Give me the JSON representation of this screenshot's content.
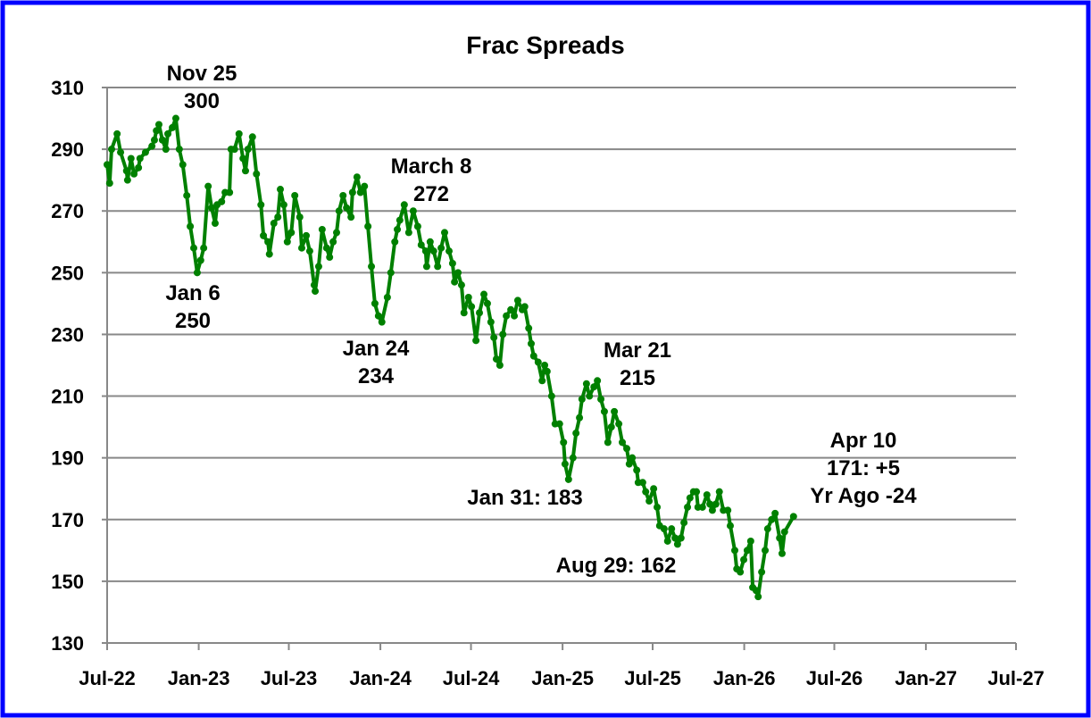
{
  "chart_data": {
    "type": "line",
    "title": "Frac Spreads",
    "xlabel": "",
    "ylabel": "",
    "xlim": [
      "2022-07-01",
      "2027-07-01"
    ],
    "ylim": [
      130,
      310
    ],
    "grid": "horizontal",
    "legend": "none",
    "colors": {
      "line": "#008000",
      "frame": "#0000ff",
      "grid": "#888888"
    },
    "x_tick_labels": [
      "Jul-22",
      "Jan-23",
      "Jul-23",
      "Jan-24",
      "Jul-24",
      "Jan-25",
      "Jul-25",
      "Jan-26",
      "Jul-26",
      "Jan-27",
      "Jul-27"
    ],
    "x_tick_dates": [
      "2022-07-01",
      "2023-01-01",
      "2023-07-01",
      "2024-01-01",
      "2024-07-01",
      "2025-01-01",
      "2025-07-01",
      "2026-01-01",
      "2026-07-01",
      "2027-01-01",
      "2027-07-01"
    ],
    "y_tick_labels": [
      "310",
      "290",
      "270",
      "250",
      "230",
      "210",
      "190",
      "170",
      "150",
      "130"
    ],
    "y_ticks": [
      310,
      290,
      270,
      250,
      230,
      210,
      190,
      170,
      150,
      130
    ],
    "annotations": [
      {
        "lines": [
          "Nov 25",
          "300"
        ]
      },
      {
        "lines": [
          "Jan 6",
          "250"
        ]
      },
      {
        "lines": [
          "March 8",
          "272"
        ]
      },
      {
        "lines": [
          "Jan 24",
          "234"
        ]
      },
      {
        "lines": [
          "Mar 21",
          "215"
        ]
      },
      {
        "lines": [
          "Jan 31: 183"
        ]
      },
      {
        "lines": [
          "Aug 29: 162"
        ]
      },
      {
        "lines": [
          "Apr 10",
          "171: +5",
          "Yr Ago -24"
        ]
      }
    ],
    "series": [
      {
        "points": [
          [
            "2022-07-01",
            285
          ],
          [
            "2022-07-06",
            279
          ],
          [
            "2022-07-10",
            290
          ],
          [
            "2022-07-21",
            295
          ],
          [
            "2022-07-28",
            289
          ],
          [
            "2022-08-09",
            283
          ],
          [
            "2022-08-11",
            280
          ],
          [
            "2022-08-18",
            287
          ],
          [
            "2022-08-24",
            282
          ],
          [
            "2022-09-02",
            284
          ],
          [
            "2022-09-05",
            287
          ],
          [
            "2022-09-16",
            289
          ],
          [
            "2022-09-29",
            291
          ],
          [
            "2022-10-04",
            293
          ],
          [
            "2022-10-08",
            296
          ],
          [
            "2022-10-13",
            298
          ],
          [
            "2022-10-20",
            293
          ],
          [
            "2022-10-27",
            290
          ],
          [
            "2022-10-31",
            295
          ],
          [
            "2022-11-09",
            297
          ],
          [
            "2022-11-16",
            300
          ],
          [
            "2022-11-23",
            290
          ],
          [
            "2022-11-30",
            285
          ],
          [
            "2022-12-08",
            275
          ],
          [
            "2022-12-15",
            265
          ],
          [
            "2022-12-22",
            258
          ],
          [
            "2022-12-29",
            250
          ],
          [
            "2023-01-05",
            254
          ],
          [
            "2023-01-11",
            258
          ],
          [
            "2023-01-20",
            278
          ],
          [
            "2023-01-27",
            271
          ],
          [
            "2023-02-03",
            266
          ],
          [
            "2023-02-07",
            272
          ],
          [
            "2023-02-16",
            273
          ],
          [
            "2023-02-23",
            276
          ],
          [
            "2023-03-04",
            276
          ],
          [
            "2023-03-07",
            290
          ],
          [
            "2023-03-14",
            290
          ],
          [
            "2023-03-23",
            295
          ],
          [
            "2023-03-31",
            287
          ],
          [
            "2023-04-05",
            283
          ],
          [
            "2023-04-10",
            290
          ],
          [
            "2023-04-19",
            294
          ],
          [
            "2023-04-27",
            282
          ],
          [
            "2023-05-06",
            272
          ],
          [
            "2023-05-11",
            262
          ],
          [
            "2023-05-20",
            260
          ],
          [
            "2023-05-23",
            256
          ],
          [
            "2023-06-01",
            266
          ],
          [
            "2023-06-09",
            268
          ],
          [
            "2023-06-14",
            277
          ],
          [
            "2023-06-21",
            272
          ],
          [
            "2023-06-28",
            260
          ],
          [
            "2023-07-06",
            263
          ],
          [
            "2023-07-13",
            275
          ],
          [
            "2023-07-23",
            268
          ],
          [
            "2023-07-27",
            258
          ],
          [
            "2023-08-05",
            262
          ],
          [
            "2023-08-12",
            257
          ],
          [
            "2023-08-21",
            246
          ],
          [
            "2023-08-23",
            244
          ],
          [
            "2023-08-30",
            252
          ],
          [
            "2023-09-06",
            264
          ],
          [
            "2023-09-15",
            258
          ],
          [
            "2023-09-21",
            255
          ],
          [
            "2023-09-28",
            260
          ],
          [
            "2023-10-05",
            263
          ],
          [
            "2023-10-10",
            270
          ],
          [
            "2023-10-18",
            275
          ],
          [
            "2023-10-25",
            271
          ],
          [
            "2023-11-03",
            268
          ],
          [
            "2023-11-06",
            276
          ],
          [
            "2023-11-15",
            281
          ],
          [
            "2023-11-22",
            276
          ],
          [
            "2023-11-30",
            278
          ],
          [
            "2023-12-07",
            265
          ],
          [
            "2023-12-14",
            252
          ],
          [
            "2023-12-21",
            240
          ],
          [
            "2023-12-28",
            236
          ],
          [
            "2024-01-04",
            234
          ],
          [
            "2024-01-15",
            242
          ],
          [
            "2024-01-22",
            250
          ],
          [
            "2024-01-30",
            260
          ],
          [
            "2024-02-04",
            264
          ],
          [
            "2024-02-09",
            267
          ],
          [
            "2024-02-18",
            272
          ],
          [
            "2024-02-27",
            263
          ],
          [
            "2024-03-07",
            270
          ],
          [
            "2024-03-16",
            265
          ],
          [
            "2024-03-23",
            259
          ],
          [
            "2024-04-01",
            257
          ],
          [
            "2024-04-03",
            252
          ],
          [
            "2024-04-10",
            260
          ],
          [
            "2024-04-17",
            257
          ],
          [
            "2024-04-25",
            252
          ],
          [
            "2024-05-02",
            258
          ],
          [
            "2024-05-09",
            263
          ],
          [
            "2024-05-18",
            257
          ],
          [
            "2024-05-25",
            253
          ],
          [
            "2024-05-29",
            247
          ],
          [
            "2024-06-05",
            250
          ],
          [
            "2024-06-12",
            246
          ],
          [
            "2024-06-17",
            237
          ],
          [
            "2024-06-26",
            242
          ],
          [
            "2024-07-02",
            239
          ],
          [
            "2024-07-11",
            228
          ],
          [
            "2024-07-18",
            237
          ],
          [
            "2024-07-27",
            243
          ],
          [
            "2024-08-03",
            240
          ],
          [
            "2024-08-10",
            234
          ],
          [
            "2024-08-16",
            229
          ],
          [
            "2024-08-21",
            222
          ],
          [
            "2024-08-28",
            220
          ],
          [
            "2024-09-03",
            230
          ],
          [
            "2024-09-10",
            236
          ],
          [
            "2024-09-19",
            238
          ],
          [
            "2024-09-26",
            236
          ],
          [
            "2024-10-03",
            241
          ],
          [
            "2024-10-12",
            238
          ],
          [
            "2024-10-17",
            239
          ],
          [
            "2024-10-25",
            232
          ],
          [
            "2024-10-30",
            227
          ],
          [
            "2024-11-04",
            223
          ],
          [
            "2024-11-13",
            221
          ],
          [
            "2024-11-21",
            215
          ],
          [
            "2024-11-26",
            220
          ],
          [
            "2024-12-01",
            218
          ],
          [
            "2024-12-10",
            210
          ],
          [
            "2024-12-17",
            201
          ],
          [
            "2024-12-26",
            201
          ],
          [
            "2025-01-03",
            195
          ],
          [
            "2025-01-06",
            188
          ],
          [
            "2025-01-13",
            183
          ],
          [
            "2025-01-22",
            190
          ],
          [
            "2025-01-28",
            198
          ],
          [
            "2025-02-04",
            203
          ],
          [
            "2025-02-09",
            209
          ],
          [
            "2025-02-18",
            214
          ],
          [
            "2025-02-24",
            210
          ],
          [
            "2025-03-05",
            213
          ],
          [
            "2025-03-12",
            215
          ],
          [
            "2025-03-19",
            209
          ],
          [
            "2025-03-26",
            205
          ],
          [
            "2025-04-02",
            195
          ],
          [
            "2025-04-09",
            200
          ],
          [
            "2025-04-15",
            205
          ],
          [
            "2025-04-24",
            201
          ],
          [
            "2025-05-01",
            195
          ],
          [
            "2025-05-10",
            193
          ],
          [
            "2025-05-15",
            188
          ],
          [
            "2025-05-21",
            190
          ],
          [
            "2025-05-30",
            186
          ],
          [
            "2025-06-02",
            182
          ],
          [
            "2025-06-11",
            182
          ],
          [
            "2025-06-17",
            179
          ],
          [
            "2025-06-24",
            176
          ],
          [
            "2025-07-03",
            180
          ],
          [
            "2025-07-10",
            174
          ],
          [
            "2025-07-15",
            168
          ],
          [
            "2025-07-24",
            167
          ],
          [
            "2025-07-31",
            163
          ],
          [
            "2025-08-08",
            167
          ],
          [
            "2025-08-15",
            164
          ],
          [
            "2025-08-20",
            162
          ],
          [
            "2025-08-27",
            164
          ],
          [
            "2025-09-02",
            169
          ],
          [
            "2025-09-09",
            174
          ],
          [
            "2025-09-14",
            177
          ],
          [
            "2025-09-21",
            179
          ],
          [
            "2025-09-27",
            179
          ],
          [
            "2025-09-30",
            174
          ],
          [
            "2025-10-09",
            174
          ],
          [
            "2025-10-18",
            178
          ],
          [
            "2025-10-24",
            175
          ],
          [
            "2025-10-29",
            173
          ],
          [
            "2025-11-05",
            175
          ],
          [
            "2025-11-12",
            179
          ],
          [
            "2025-11-20",
            173
          ],
          [
            "2025-11-29",
            173
          ],
          [
            "2025-12-04",
            168
          ],
          [
            "2025-12-13",
            160
          ],
          [
            "2025-12-17",
            154
          ],
          [
            "2025-12-24",
            153
          ],
          [
            "2025-12-31",
            157
          ],
          [
            "2026-01-07",
            160
          ],
          [
            "2026-01-14",
            163
          ],
          [
            "2026-01-18",
            148
          ],
          [
            "2026-01-25",
            147
          ],
          [
            "2026-01-29",
            145
          ],
          [
            "2026-02-05",
            153
          ],
          [
            "2026-02-12",
            160
          ],
          [
            "2026-02-17",
            167
          ],
          [
            "2026-02-25",
            170
          ],
          [
            "2026-03-04",
            172
          ],
          [
            "2026-03-13",
            164
          ],
          [
            "2026-03-18",
            159
          ],
          [
            "2026-03-23",
            166
          ],
          [
            "2026-04-10",
            171
          ]
        ]
      }
    ]
  }
}
